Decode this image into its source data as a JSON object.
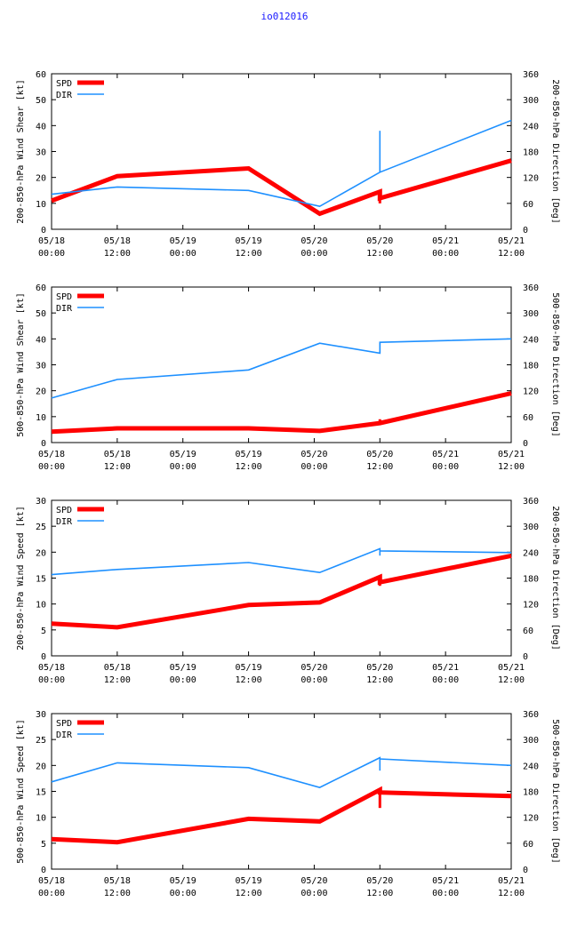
{
  "title": "io012016",
  "colors": {
    "spd": "#ff0000",
    "dir": "#1e90ff",
    "axis": "#000000",
    "title": "#1a1aff"
  },
  "x_ticks": [
    {
      "date": "05/18",
      "time": "00:00",
      "h": 0
    },
    {
      "date": "05/18",
      "time": "12:00",
      "h": 12
    },
    {
      "date": "05/19",
      "time": "00:00",
      "h": 24
    },
    {
      "date": "05/19",
      "time": "12:00",
      "h": 36
    },
    {
      "date": "05/20",
      "time": "00:00",
      "h": 48
    },
    {
      "date": "05/20",
      "time": "12:00",
      "h": 60
    },
    {
      "date": "05/21",
      "time": "00:00",
      "h": 72
    },
    {
      "date": "05/21",
      "time": "12:00",
      "h": 84
    }
  ],
  "chart_data": [
    {
      "type": "line",
      "ylabel_left": "200-850-hPa Wind Shear [kt]",
      "ylabel_right": "200-850-hPa Direction [Deg]",
      "ylim_left": [
        0,
        60
      ],
      "yticks_left": [
        0,
        10,
        20,
        30,
        40,
        50,
        60
      ],
      "ylim_right": [
        0,
        360
      ],
      "yticks_right": [
        0,
        60,
        120,
        180,
        240,
        300,
        360
      ],
      "xlim": [
        0,
        84
      ],
      "legend": [
        "SPD",
        "DIR"
      ],
      "series": [
        {
          "name": "SPD",
          "axis": "left",
          "x": [
            0,
            12,
            36,
            49,
            60,
            60,
            84
          ],
          "y": [
            11,
            20.5,
            23.5,
            6,
            14.5,
            12,
            26.5
          ],
          "spike": {
            "x": 60,
            "y1": 10,
            "y2": 14.5
          }
        },
        {
          "name": "DIR",
          "axis": "right",
          "x": [
            0,
            12,
            36,
            49,
            60,
            60,
            84
          ],
          "y": [
            81,
            98,
            90,
            53,
            132,
            132,
            252
          ],
          "spike": {
            "x": 60,
            "y1": 132,
            "y2": 228
          }
        }
      ]
    },
    {
      "type": "line",
      "ylabel_left": "500-850-hPa Wind Shear [kt]",
      "ylabel_right": "500-850-hPa Direction [Deg]",
      "ylim_left": [
        0,
        60
      ],
      "yticks_left": [
        0,
        10,
        20,
        30,
        40,
        50,
        60
      ],
      "ylim_right": [
        0,
        360
      ],
      "yticks_right": [
        0,
        60,
        120,
        180,
        240,
        300,
        360
      ],
      "xlim": [
        0,
        84
      ],
      "legend": [
        "SPD",
        "DIR"
      ],
      "series": [
        {
          "name": "SPD",
          "axis": "left",
          "x": [
            0,
            12,
            36,
            49,
            60,
            60,
            84
          ],
          "y": [
            4.2,
            5.5,
            5.5,
            4.5,
            7.5,
            7.5,
            19
          ],
          "spike": {
            "x": 60,
            "y1": 7.5,
            "y2": 9
          }
        },
        {
          "name": "DIR",
          "axis": "right",
          "x": [
            0,
            12,
            36,
            49,
            60,
            60,
            84
          ],
          "y": [
            103,
            146,
            168,
            230,
            207,
            232,
            240
          ],
          "spike": {
            "x": 60,
            "y1": 207,
            "y2": 232
          }
        }
      ]
    },
    {
      "type": "line",
      "ylabel_left": "200-850-hPa Wind Speed [kt]",
      "ylabel_right": "200-850-hPa Direction [Deg]",
      "ylim_left": [
        0,
        30
      ],
      "yticks_left": [
        0,
        5,
        10,
        15,
        20,
        25,
        30
      ],
      "ylim_right": [
        0,
        360
      ],
      "yticks_right": [
        0,
        60,
        120,
        180,
        240,
        300,
        360
      ],
      "xlim": [
        0,
        84
      ],
      "legend": [
        "SPD",
        "DIR"
      ],
      "series": [
        {
          "name": "SPD",
          "axis": "left",
          "x": [
            0,
            12,
            36,
            49,
            60,
            60,
            84
          ],
          "y": [
            6.2,
            5.5,
            9.8,
            10.3,
            15.2,
            14.2,
            19.3
          ],
          "spike": {
            "x": 60,
            "y1": 13.5,
            "y2": 15.5
          }
        },
        {
          "name": "DIR",
          "axis": "right",
          "x": [
            0,
            12,
            36,
            49,
            60,
            60,
            84
          ],
          "y": [
            188,
            200,
            216,
            193,
            248,
            243,
            239
          ],
          "spike": {
            "x": 60,
            "y1": 232,
            "y2": 248
          }
        }
      ]
    },
    {
      "type": "line",
      "ylabel_left": "500-850-hPa Wind Speed [kt]",
      "ylabel_right": "500-850-hPa Direction [Deg]",
      "ylim_left": [
        0,
        30
      ],
      "yticks_left": [
        0,
        5,
        10,
        15,
        20,
        25,
        30
      ],
      "ylim_right": [
        0,
        360
      ],
      "yticks_right": [
        0,
        60,
        120,
        180,
        240,
        300,
        360
      ],
      "xlim": [
        0,
        84
      ],
      "legend": [
        "SPD",
        "DIR"
      ],
      "series": [
        {
          "name": "SPD",
          "axis": "left",
          "x": [
            0,
            12,
            36,
            49,
            60,
            60,
            84
          ],
          "y": [
            5.8,
            5.2,
            9.7,
            9.2,
            15.3,
            14.8,
            14.1
          ],
          "spike": {
            "x": 60,
            "y1": 11.8,
            "y2": 15.5
          }
        },
        {
          "name": "DIR",
          "axis": "right",
          "x": [
            0,
            12,
            36,
            49,
            60,
            60,
            84
          ],
          "y": [
            202,
            246,
            235,
            189,
            258,
            255,
            240
          ],
          "spike": {
            "x": 60,
            "y1": 228,
            "y2": 258
          }
        }
      ]
    }
  ]
}
